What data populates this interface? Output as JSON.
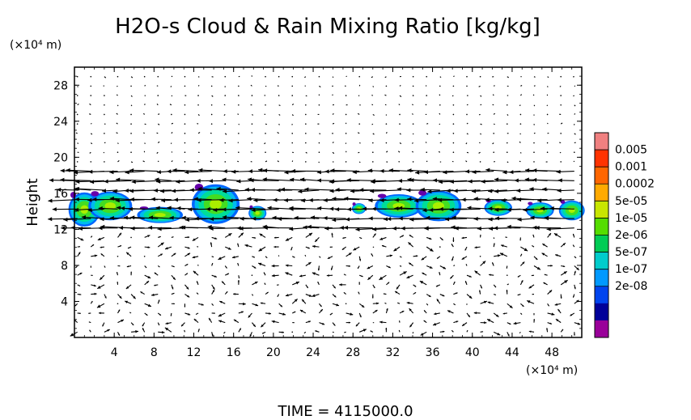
{
  "chart_data": {
    "type": "heatmap",
    "title": "H2O-s Cloud & Rain Mixing Ratio [kg/kg]",
    "ylabel": "Height",
    "y_unit": "(×10⁴ m)",
    "x_unit": "(×10⁴ m)",
    "xlim": [
      0,
      51
    ],
    "ylim": [
      0,
      30
    ],
    "x_ticks": [
      "4",
      "8",
      "12",
      "16",
      "20",
      "24",
      "28",
      "32",
      "36",
      "40",
      "44",
      "48"
    ],
    "y_ticks": [
      "4",
      "8",
      "12",
      "16",
      "20",
      "24",
      "28"
    ],
    "x_tick_values": [
      4,
      8,
      12,
      16,
      20,
      24,
      28,
      32,
      36,
      40,
      44,
      48
    ],
    "y_tick_values": [
      4,
      8,
      12,
      16,
      20,
      24,
      28
    ],
    "colorbar": {
      "labels": [
        "0.005",
        "0.001",
        "0.0002",
        "5e-05",
        "1e-05",
        "2e-06",
        "5e-07",
        "1e-07",
        "2e-08"
      ],
      "colors": [
        "#f08080",
        "#ff3300",
        "#ff6600",
        "#ffaa00",
        "#c8e600",
        "#55dd00",
        "#00cc55",
        "#00cccc",
        "#0099ff",
        "#0044ee",
        "#000099",
        "#990099"
      ]
    },
    "cloud_blobs": [
      {
        "x": 1.0,
        "y": 14.2,
        "rx": 1.6,
        "ry": 1.9
      },
      {
        "x": 3.6,
        "y": 14.6,
        "rx": 2.2,
        "ry": 1.6
      },
      {
        "x": 8.6,
        "y": 13.6,
        "rx": 2.3,
        "ry": 0.9
      },
      {
        "x": 14.2,
        "y": 14.8,
        "rx": 2.4,
        "ry": 2.2
      },
      {
        "x": 18.4,
        "y": 13.8,
        "rx": 0.9,
        "ry": 0.8
      },
      {
        "x": 28.6,
        "y": 14.3,
        "rx": 0.7,
        "ry": 0.6
      },
      {
        "x": 32.6,
        "y": 14.6,
        "rx": 2.4,
        "ry": 1.3
      },
      {
        "x": 36.6,
        "y": 14.6,
        "rx": 2.3,
        "ry": 1.7
      },
      {
        "x": 42.6,
        "y": 14.4,
        "rx": 1.4,
        "ry": 0.9
      },
      {
        "x": 46.8,
        "y": 14.1,
        "rx": 1.4,
        "ry": 0.9
      },
      {
        "x": 50.0,
        "y": 14.1,
        "rx": 1.3,
        "ry": 1.1
      }
    ],
    "wind_band": {
      "y_min": 12.0,
      "y_max": 19.2,
      "direction": "westward"
    },
    "footer": "TIME  =  4115000.0"
  }
}
